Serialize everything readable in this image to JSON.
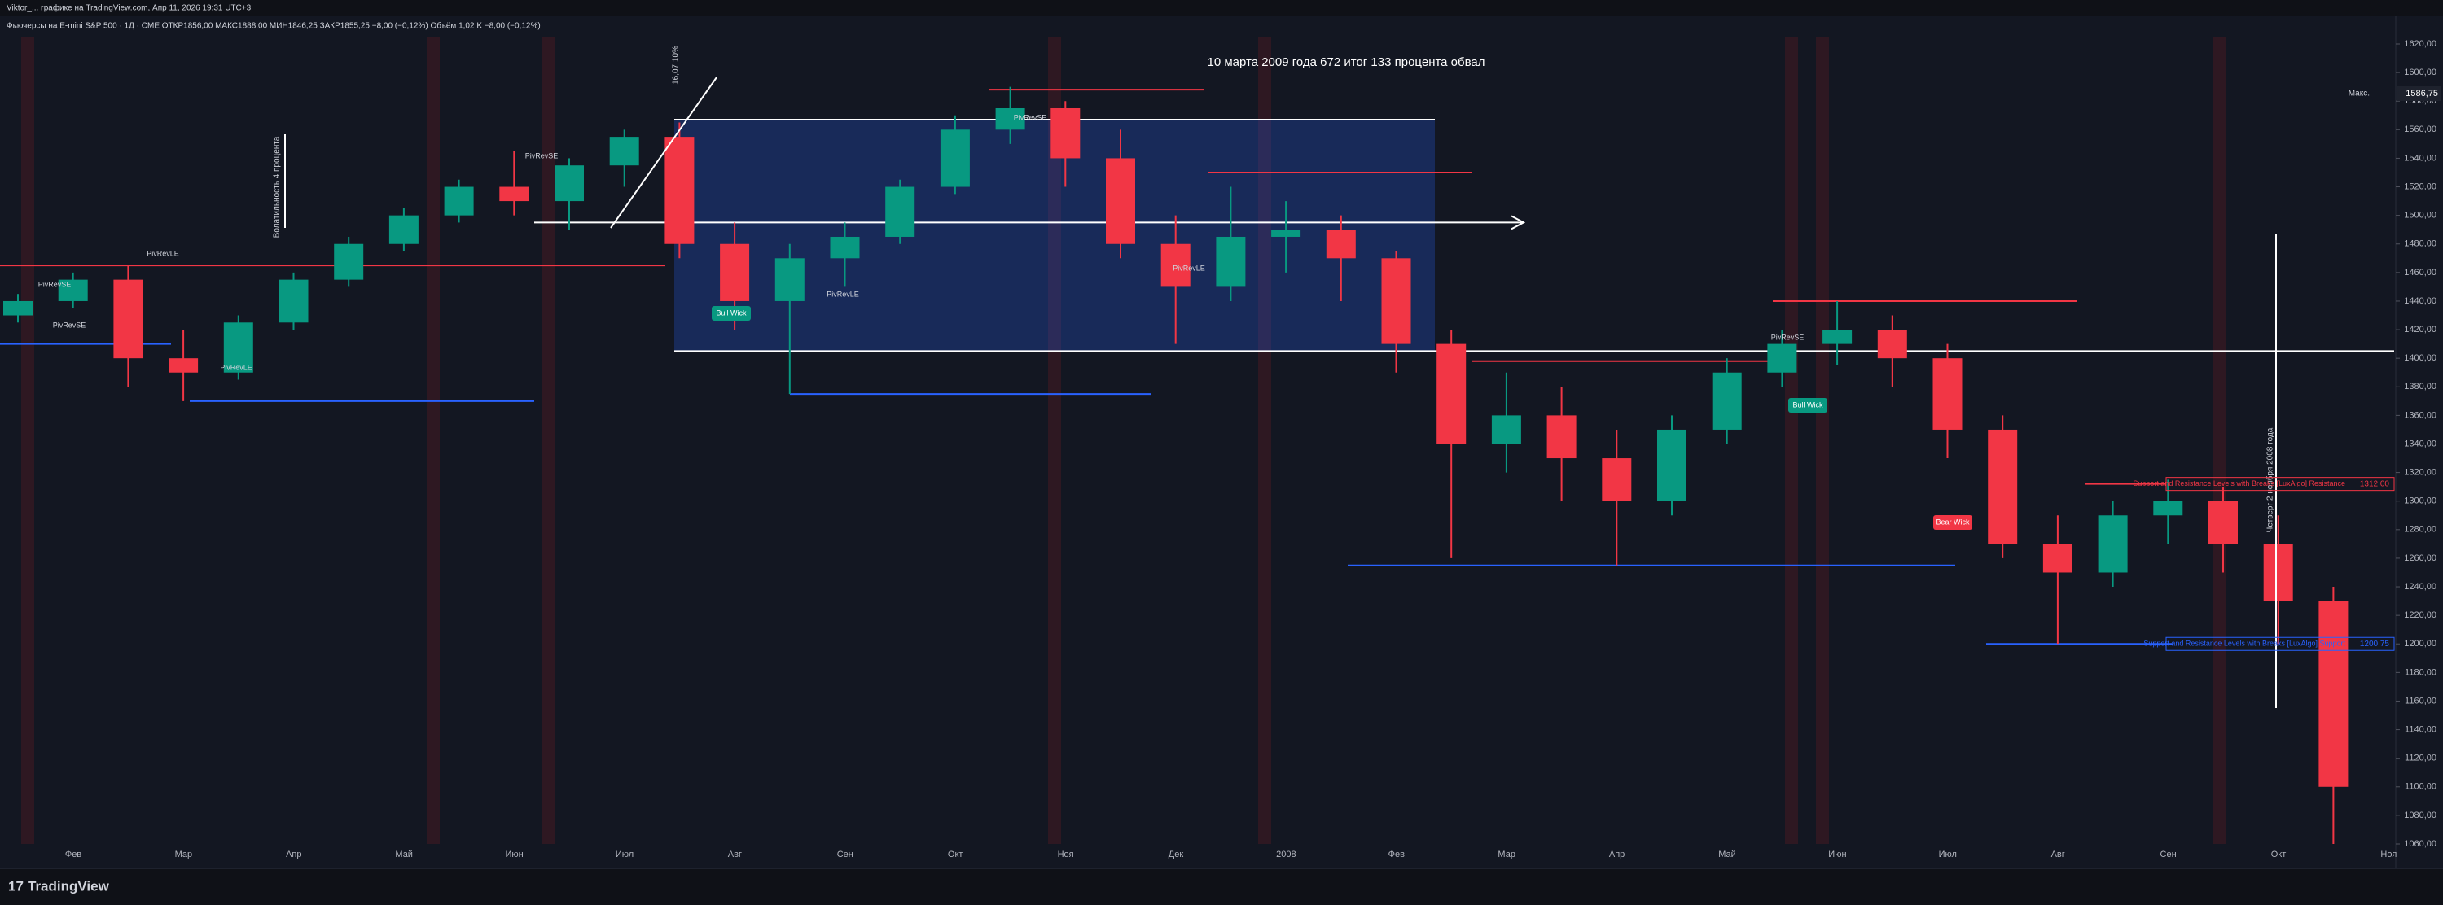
{
  "header": {
    "author_line": "Viktor_... графике на TradingView.com, Апр 11, 2026 19:31 UTC+3",
    "symbol_line": "Фьючерсы на E-mini S&P 500 · 1Д · CME  ОТКР1856,00 МАКС1888,00 МИН1846,25 ЗАКР1855,25 −8,00 (−0,12%)  Объём 1,02 K −8,00 (−0,12%)"
  },
  "chart_data": {
    "type": "candlestick",
    "candles": [
      {
        "open": 1430,
        "high": 1445,
        "low": 1425,
        "close": 1440
      },
      {
        "open": 1440,
        "high": 1460,
        "low": 1435,
        "close": 1455
      },
      {
        "open": 1455,
        "high": 1465,
        "low": 1380,
        "close": 1400
      },
      {
        "open": 1400,
        "high": 1420,
        "low": 1370,
        "close": 1390
      },
      {
        "open": 1390,
        "high": 1430,
        "low": 1385,
        "close": 1425
      },
      {
        "open": 1425,
        "high": 1460,
        "low": 1420,
        "close": 1455
      },
      {
        "open": 1455,
        "high": 1485,
        "low": 1450,
        "close": 1480
      },
      {
        "open": 1480,
        "high": 1505,
        "low": 1475,
        "close": 1500
      },
      {
        "open": 1500,
        "high": 1525,
        "low": 1495,
        "close": 1520
      },
      {
        "open": 1520,
        "high": 1545,
        "low": 1500,
        "close": 1510
      },
      {
        "open": 1510,
        "high": 1540,
        "low": 1490,
        "close": 1535
      },
      {
        "open": 1535,
        "high": 1560,
        "low": 1520,
        "close": 1555
      },
      {
        "open": 1555,
        "high": 1565,
        "low": 1470,
        "close": 1480
      },
      {
        "open": 1480,
        "high": 1495,
        "low": 1420,
        "close": 1440
      },
      {
        "open": 1440,
        "high": 1480,
        "low": 1375,
        "close": 1470
      },
      {
        "open": 1470,
        "high": 1495,
        "low": 1450,
        "close": 1485
      },
      {
        "open": 1485,
        "high": 1525,
        "low": 1480,
        "close": 1520
      },
      {
        "open": 1520,
        "high": 1570,
        "low": 1515,
        "close": 1560
      },
      {
        "open": 1560,
        "high": 1590,
        "low": 1550,
        "close": 1575
      },
      {
        "open": 1575,
        "high": 1580,
        "low": 1520,
        "close": 1540
      },
      {
        "open": 1540,
        "high": 1560,
        "low": 1470,
        "close": 1480
      },
      {
        "open": 1480,
        "high": 1500,
        "low": 1410,
        "close": 1450
      },
      {
        "open": 1450,
        "high": 1520,
        "low": 1440,
        "close": 1485
      },
      {
        "open": 1485,
        "high": 1510,
        "low": 1460,
        "close": 1490
      },
      {
        "open": 1490,
        "high": 1500,
        "low": 1440,
        "close": 1470
      },
      {
        "open": 1470,
        "high": 1475,
        "low": 1390,
        "close": 1410
      },
      {
        "open": 1410,
        "high": 1420,
        "low": 1260,
        "close": 1340
      },
      {
        "open": 1340,
        "high": 1390,
        "low": 1320,
        "close": 1360
      },
      {
        "open": 1360,
        "high": 1380,
        "low": 1300,
        "close": 1330
      },
      {
        "open": 1330,
        "high": 1350,
        "low": 1255,
        "close": 1300
      },
      {
        "open": 1300,
        "high": 1360,
        "low": 1290,
        "close": 1350
      },
      {
        "open": 1350,
        "high": 1400,
        "low": 1340,
        "close": 1390
      },
      {
        "open": 1390,
        "high": 1420,
        "low": 1380,
        "close": 1410
      },
      {
        "open": 1410,
        "high": 1440,
        "low": 1395,
        "close": 1420
      },
      {
        "open": 1420,
        "high": 1430,
        "low": 1380,
        "close": 1400
      },
      {
        "open": 1400,
        "high": 1410,
        "low": 1330,
        "close": 1350
      },
      {
        "open": 1350,
        "high": 1360,
        "low": 1260,
        "close": 1270
      },
      {
        "open": 1270,
        "high": 1290,
        "low": 1200,
        "close": 1250
      },
      {
        "open": 1250,
        "high": 1300,
        "low": 1240,
        "close": 1290
      },
      {
        "open": 1290,
        "high": 1315,
        "low": 1270,
        "close": 1300
      },
      {
        "open": 1300,
        "high": 1310,
        "low": 1250,
        "close": 1270
      },
      {
        "open": 1270,
        "high": 1290,
        "low": 1200,
        "close": 1230
      },
      {
        "open": 1230,
        "high": 1240,
        "low": 1060,
        "close": 1100
      }
    ],
    "up_color": "#089981",
    "down_color": "#f23645",
    "ylim": [
      1060,
      1620
    ],
    "yticks": [
      {
        "value": 1060,
        "label": "1060,00"
      },
      {
        "value": 1080,
        "label": "1080,00"
      },
      {
        "value": 1100,
        "label": "1100,00"
      },
      {
        "value": 1120,
        "label": "1120,00"
      },
      {
        "value": 1140,
        "label": "1140,00"
      },
      {
        "value": 1160,
        "label": "1160,00"
      },
      {
        "value": 1180,
        "label": "1180,00"
      },
      {
        "value": 1200,
        "label": "1200,00"
      },
      {
        "value": 1220,
        "label": "1220,00"
      },
      {
        "value": 1240,
        "label": "1240,00"
      },
      {
        "value": 1260,
        "label": "1260,00"
      },
      {
        "value": 1280,
        "label": "1280,00"
      },
      {
        "value": 1300,
        "label": "1300,00"
      },
      {
        "value": 1320,
        "label": "1320,00"
      },
      {
        "value": 1340,
        "label": "1340,00"
      },
      {
        "value": 1360,
        "label": "1360,00"
      },
      {
        "value": 1380,
        "label": "1380,00"
      },
      {
        "value": 1400,
        "label": "1400,00"
      },
      {
        "value": 1420,
        "label": "1420,00"
      },
      {
        "value": 1440,
        "label": "1440,00"
      },
      {
        "value": 1460,
        "label": "1460,00"
      },
      {
        "value": 1480,
        "label": "1480,00"
      },
      {
        "value": 1500,
        "label": "1500,00"
      },
      {
        "value": 1520,
        "label": "1520,00"
      },
      {
        "value": 1540,
        "label": "1540,00"
      },
      {
        "value": 1560,
        "label": "1560,00"
      },
      {
        "value": 1580,
        "label": "1580,00"
      },
      {
        "value": 1600,
        "label": "1600,00"
      },
      {
        "value": 1620,
        "label": "1620,00"
      }
    ],
    "time_labels": [
      "Фев",
      "Мар",
      "Апр",
      "Май",
      "Июн",
      "Июл",
      "Авг",
      "Сен",
      "Окт",
      "Ноя",
      "Дек",
      "2008",
      "Фев",
      "Мар",
      "Апр",
      "Май",
      "Июн",
      "Июл",
      "Авг",
      "Сен",
      "Окт",
      "Ноя"
    ],
    "levels": [
      {
        "value": 1588,
        "color": "#f23645"
      },
      {
        "value": 1530,
        "color": "#f23645"
      },
      {
        "value": 1465,
        "color": "#f23645"
      },
      {
        "value": 1440,
        "color": "#f23645"
      },
      {
        "value": 1398,
        "color": "#f23645"
      },
      {
        "value": 1312,
        "color": "#f23645"
      },
      {
        "value": 1410,
        "color": "#2962ff"
      },
      {
        "value": 1370,
        "color": "#2962ff"
      },
      {
        "value": 1375,
        "color": "#2962ff"
      },
      {
        "value": 1255,
        "color": "#2962ff"
      },
      {
        "value": 1200,
        "color": "#2962ff"
      },
      {
        "value": 1567,
        "color": "#ffffff"
      },
      {
        "value": 1495,
        "color": "#ffffff"
      },
      {
        "value": 1405,
        "color": "#ffffff"
      }
    ],
    "annotation": "10 марта 2009 года 672 итог 133 процента обвал",
    "vertical_notes": [
      "Волатильность 4 процента",
      "16,07 10%",
      "Четверг 2 ноября 2008 года"
    ],
    "signals": [
      "PivRevSE",
      "PivRevLE",
      "PivRevSE",
      "PivRevLE",
      "PivRevSE",
      "PivRevLE",
      "PivRevSE",
      "PivRevLE",
      "PivRevSE"
    ],
    "wick_labels": [
      "Bull Wick",
      "Bull Wick",
      "Bear Wick"
    ],
    "max_label": "Макс.",
    "max_value": "1586,75",
    "resistance_label": "Support and Resistance Levels with Breaks [LuxAlgo] Resistance",
    "resistance_value": "1312,00",
    "support_label": "Support and Resistance Levels with Breaks [LuxAlgo] Support",
    "support_value": "1200,75"
  },
  "footer": {
    "logo": "TradingView"
  }
}
